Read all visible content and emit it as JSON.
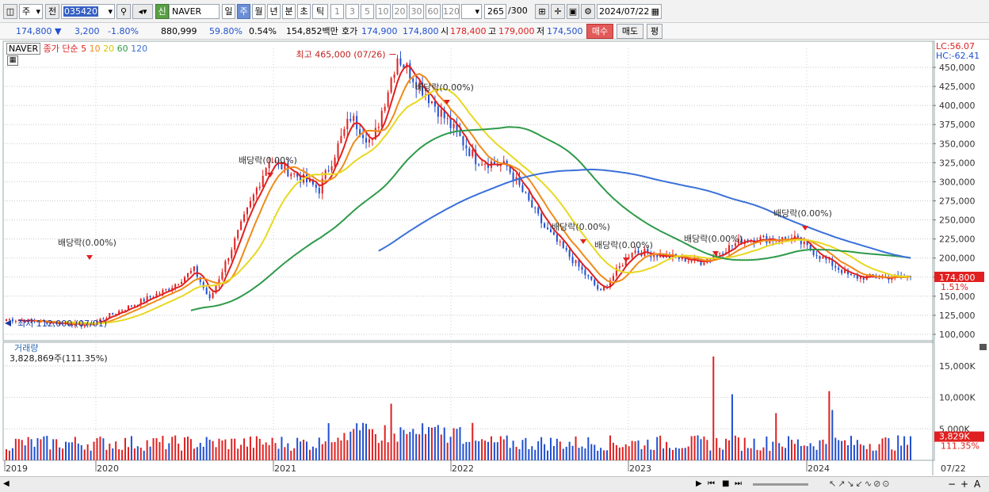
{
  "toolbar": {
    "period_main": "주",
    "prefix": "전",
    "code": "035420",
    "name_badge": "신",
    "name": "NAVER",
    "periods": [
      "일",
      "주",
      "월",
      "년",
      "분",
      "초",
      "틱"
    ],
    "active_period": "주",
    "intervals": [
      "1",
      "3",
      "5",
      "10",
      "20",
      "30",
      "60",
      "120"
    ],
    "count": "265",
    "count_total": "/300",
    "date": "2024/07/22"
  },
  "quote": {
    "price": "174,800",
    "change": "3,200",
    "change_pct": "-1.80%",
    "volume": "880,999",
    "vol_ratio": "59.80%",
    "turnover": "0.54%",
    "amount": "154,852백만",
    "ask_label": "호가",
    "ask": "174,900",
    "bid": "174,800",
    "open_label": "시",
    "open": "178,400",
    "high_label": "고",
    "high": "179,000",
    "low_label": "저",
    "low": "174,500",
    "buy_label": "매수",
    "sell_label": "매도",
    "flat_label": "평"
  },
  "legend": {
    "name": "NAVER",
    "text": "종가 단순",
    "ma": [
      {
        "label": "5",
        "color": "#e02020"
      },
      {
        "label": "10",
        "color": "#f08a1a"
      },
      {
        "label": "20",
        "color": "#e8d820"
      },
      {
        "label": "60",
        "color": "#2e9a4a"
      },
      {
        "label": "120",
        "color": "#3a70d8"
      }
    ]
  },
  "right_info": {
    "lc": "LC:56.07",
    "hc": "HC:-62.41"
  },
  "price_axis": [
    "450,000",
    "425,000",
    "400,000",
    "375,000",
    "350,000",
    "325,000",
    "300,000",
    "275,000",
    "250,000",
    "225,000",
    "200,000",
    "175,000",
    "150,000",
    "125,000",
    "100,000"
  ],
  "price_tag": "174,800",
  "price_pct": "1.51%",
  "annotations": {
    "high": "최고 465,000 (07/26)",
    "low": "최저 112,000 (07/01)",
    "dividend": "배당락(0.00%)"
  },
  "volume_panel": {
    "title": "거래량",
    "value": "3,828,869주(111.35%)",
    "axis": [
      "15,000K",
      "10,000K",
      "5,000K"
    ],
    "tag": "3,829K",
    "tag_pct": "111.35%"
  },
  "x_axis": [
    "2019",
    "2020",
    "2021",
    "2022",
    "2023",
    "2024"
  ],
  "x_right": "07/22",
  "colors": {
    "up": "#e02020",
    "down": "#2050d0",
    "ma5": "#e02020",
    "ma10": "#f08a1a",
    "ma20": "#e8d820",
    "ma60": "#2e9a4a",
    "ma120": "#3a70d8"
  },
  "chart_data": {
    "type": "candlestick",
    "title": "NAVER",
    "x": [
      "2019",
      "2020",
      "2021",
      "2022",
      "2023",
      "2024"
    ],
    "ylim": [
      100000,
      465000
    ],
    "price_keypoints": [
      {
        "t": "2019-01",
        "close": 120000
      },
      {
        "t": "2019-07",
        "close": 112000
      },
      {
        "t": "2019-10",
        "close": 160000
      },
      {
        "t": "2020-01",
        "close": 185000
      },
      {
        "t": "2020-03",
        "close": 145000
      },
      {
        "t": "2020-08",
        "close": 330000
      },
      {
        "t": "2020-12",
        "close": 290000
      },
      {
        "t": "2021-03",
        "close": 385000
      },
      {
        "t": "2021-05",
        "close": 350000
      },
      {
        "t": "2021-07",
        "close": 465000
      },
      {
        "t": "2021-10",
        "close": 395000
      },
      {
        "t": "2022-01",
        "close": 330000
      },
      {
        "t": "2022-03",
        "close": 320000
      },
      {
        "t": "2022-06",
        "close": 240000
      },
      {
        "t": "2022-10",
        "close": 155000
      },
      {
        "t": "2023-01",
        "close": 210000
      },
      {
        "t": "2023-06",
        "close": 195000
      },
      {
        "t": "2023-09",
        "close": 225000
      },
      {
        "t": "2024-01",
        "close": 225000
      },
      {
        "t": "2024-05",
        "close": 175000
      },
      {
        "t": "2024-07",
        "close": 174800
      }
    ],
    "volume_peak_k": 16500,
    "last_volume_k": 3829
  }
}
